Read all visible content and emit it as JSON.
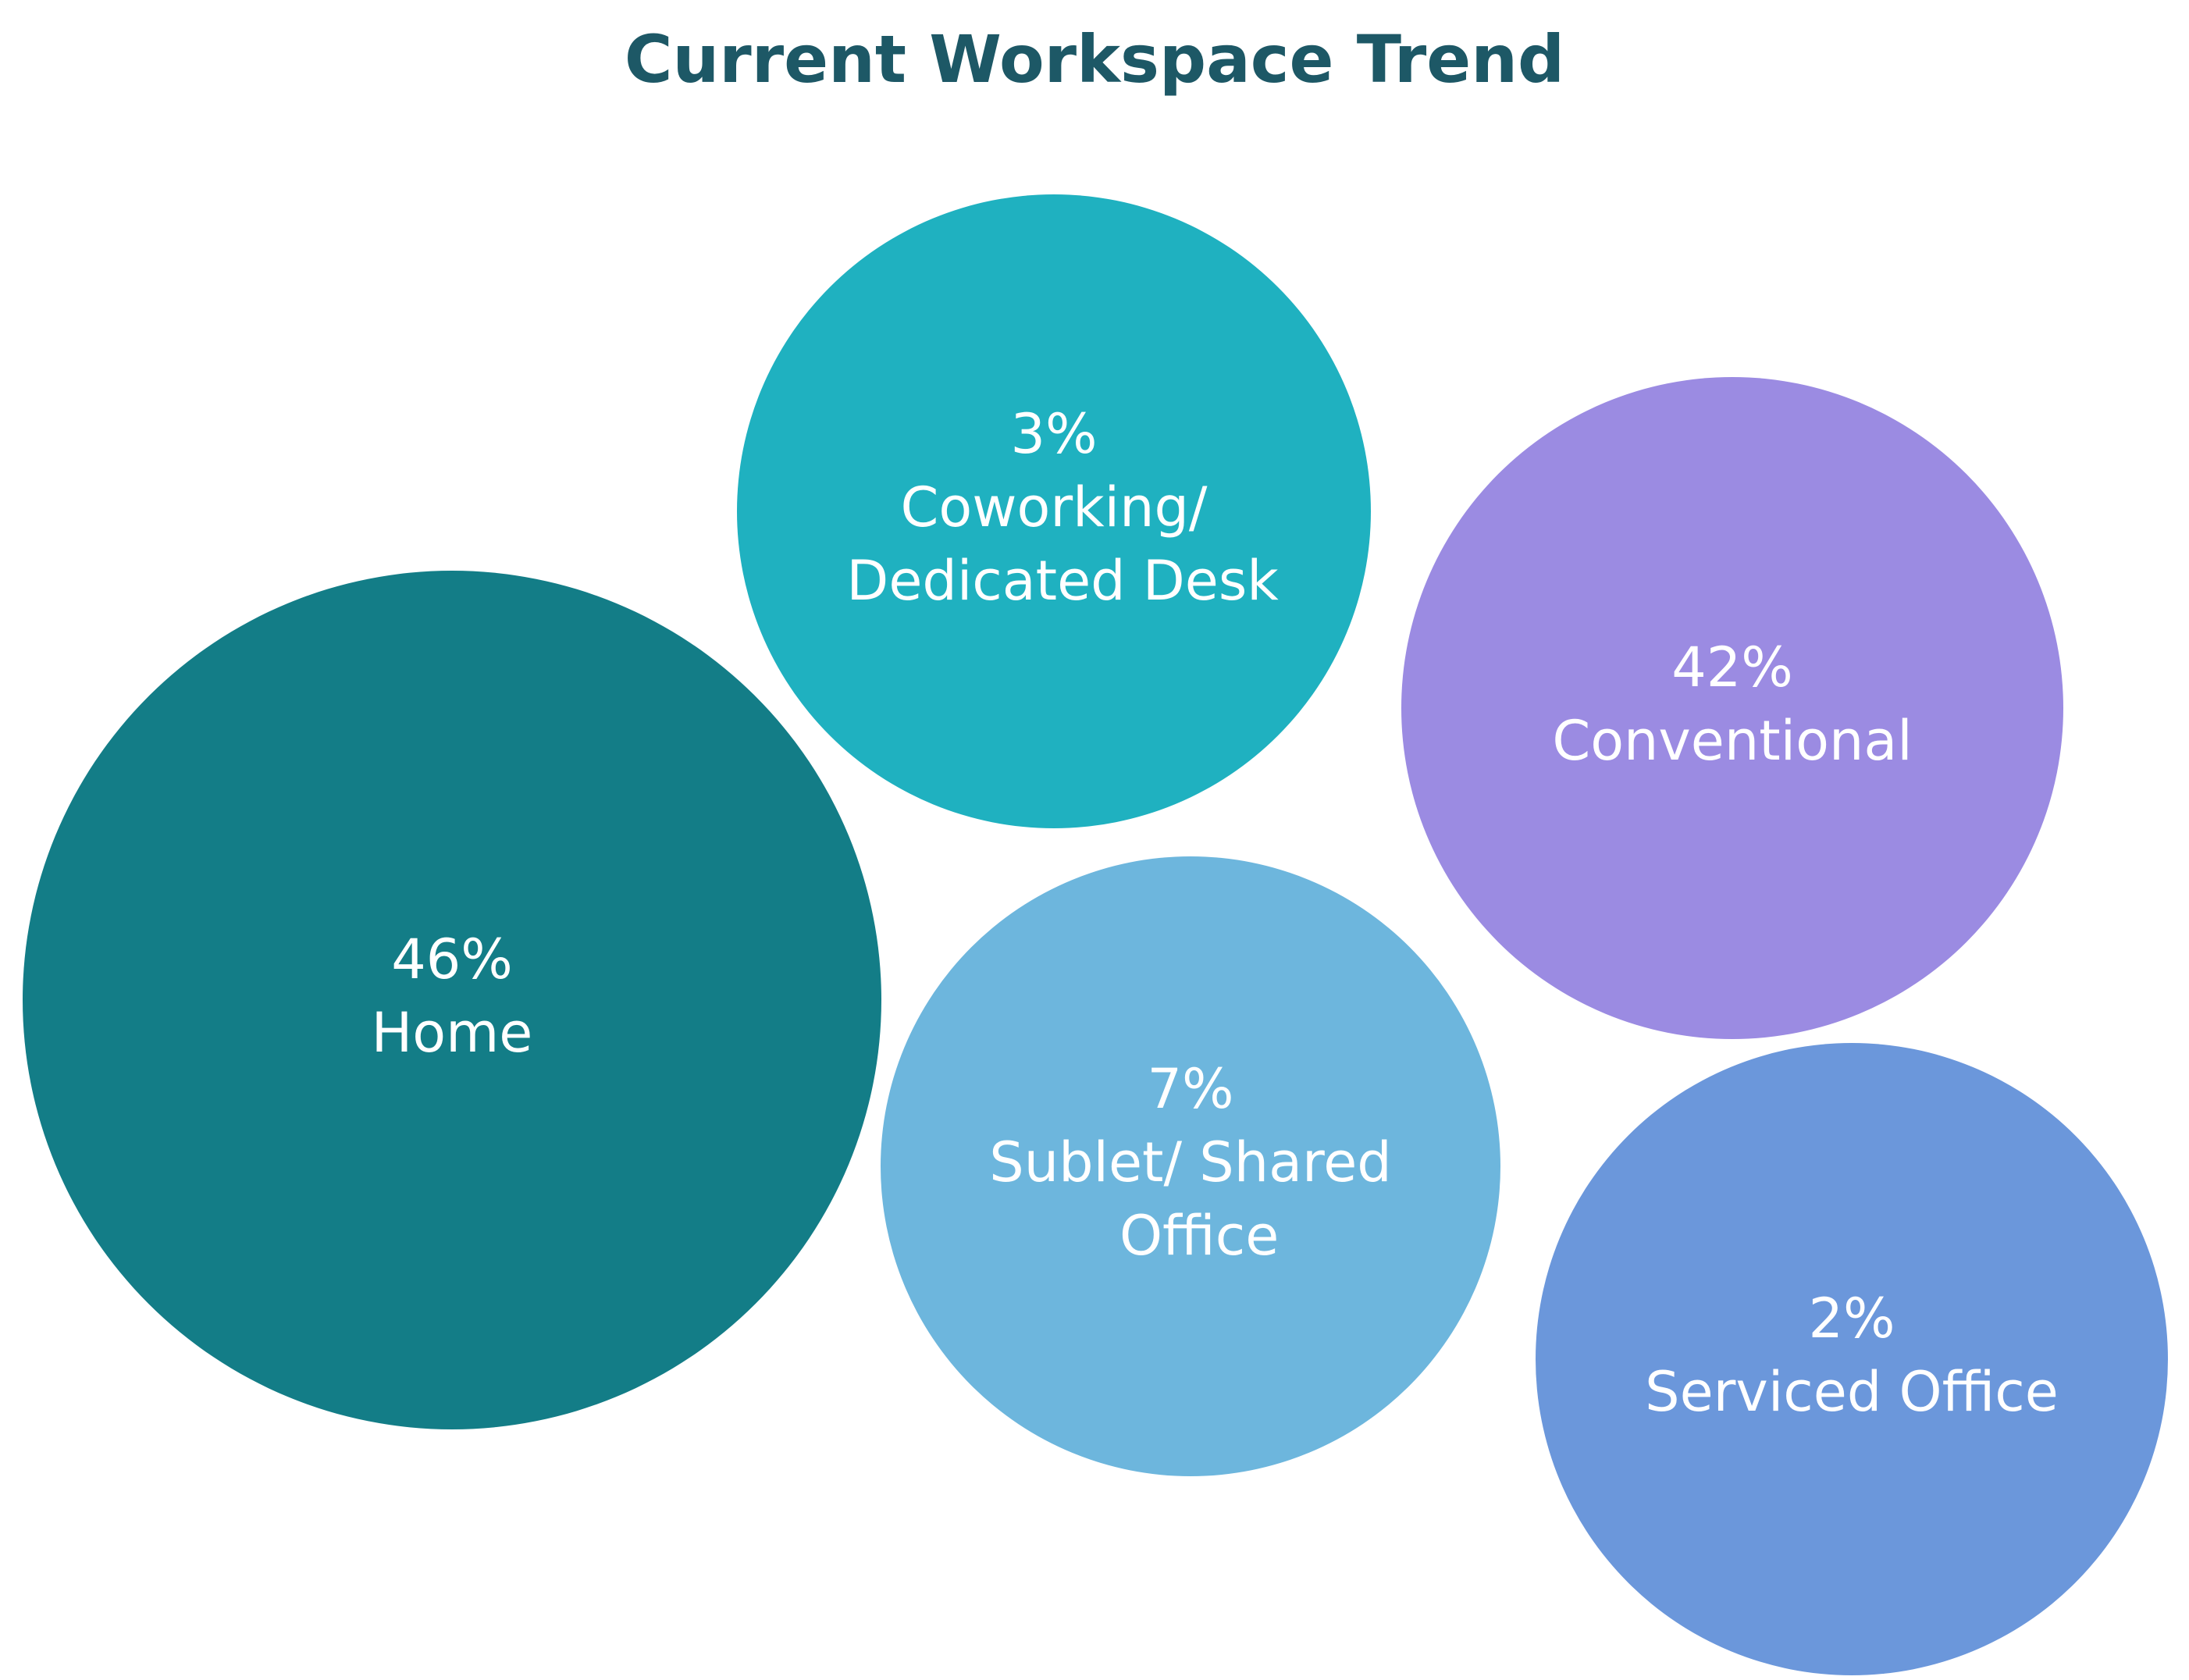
{
  "chart_data": {
    "type": "bubble",
    "title": "Current Workspace Trend",
    "categories": [
      "Home",
      "Coworking/ Dedicated Desk",
      "Conventional",
      "Sublet/ Shared Office",
      "Serviced Office"
    ],
    "values": [
      46,
      3,
      42,
      7,
      2
    ],
    "value_labels": [
      "46%",
      "3%",
      "42%",
      "7%",
      "2%"
    ],
    "colors": [
      "#137d87",
      "#1fb1c0",
      "#9b8be2",
      "#6db6dd",
      "#6b97db"
    ]
  }
}
